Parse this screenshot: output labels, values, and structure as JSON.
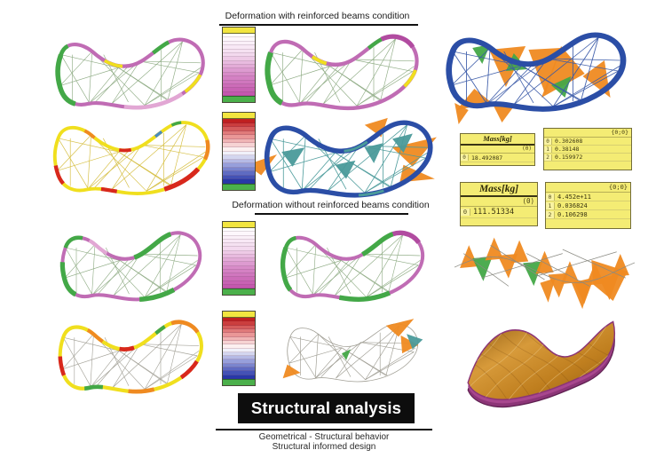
{
  "headers": {
    "with_beams": "Deformation with reinforced beams condition",
    "without_beams": "Deformation without reinforced beams condition"
  },
  "title_block": {
    "label": "Structural analysis",
    "bg": "#0d0d0d",
    "fg": "#ffffff"
  },
  "footer": {
    "line1": "Geometrical - Structural behavior",
    "line2": "Structural informed design"
  },
  "panels": {
    "mass_top": {
      "title": "Mass[kg]",
      "path": "(0)",
      "rows": [
        {
          "index": "0",
          "value": "18.492087"
        }
      ]
    },
    "list_top": {
      "path": "{0;0}",
      "rows": [
        {
          "index": "0",
          "value": "0.302608"
        },
        {
          "index": "1",
          "value": "0.38148"
        },
        {
          "index": "2",
          "value": "0.159972"
        }
      ]
    },
    "mass_bottom": {
      "title": "Mass[kg]",
      "path": "(0)",
      "rows": [
        {
          "index": "0",
          "value": "111.51334"
        }
      ]
    },
    "list_bottom": {
      "path": "{0;0}",
      "rows": [
        {
          "index": "0",
          "value": "4.452e+11"
        },
        {
          "index": "1",
          "value": "0.036824"
        },
        {
          "index": "2",
          "value": "0.106298"
        }
      ]
    }
  },
  "colors": {
    "magenta": "#c06cb4",
    "magenta_light": "#e2a7d4",
    "magenta_deep": "#b14ba0",
    "green": "#43a847",
    "yellow": "#f0df1e",
    "red": "#d8281c",
    "orange": "#ef8a21",
    "blue": "#2b4ea6",
    "teal": "#4a9a9a",
    "wire_green": "#8aa87f",
    "wire_yellow": "#d4bc3a",
    "wire_gray": "#a09e94",
    "wire_blue": "#3a5aa8",
    "surface_rim": "#8c3577",
    "surface_rim_dark": "#5e2050",
    "surface_copper_light": "#d79a3a",
    "surface_copper_dark": "#8f5c12",
    "panel_bg": "#f4ec74",
    "legend_header": "#f2e540",
    "legend_footer": "#4bb04b"
  },
  "legends": [
    {
      "id": "legend-1",
      "name": "displacement-scale-with-beams",
      "header": "#f2e540",
      "footer": "#4bb04b",
      "stops": [
        "#ffffff",
        "#f3d9ee",
        "#d88cc8",
        "#c457ae"
      ]
    },
    {
      "id": "legend-2",
      "name": "stress-scale-with-beams",
      "header": "#f2e540",
      "footer": "#4bb04b",
      "stops": [
        "#c02020",
        "#e89090",
        "#ffffff",
        "#9098d8",
        "#2838a8"
      ]
    },
    {
      "id": "legend-3",
      "name": "displacement-scale-without-beams",
      "header": "#f2e540",
      "footer": "#4bb04b",
      "stops": [
        "#ffffff",
        "#f3d9ee",
        "#d88cc8",
        "#c457ae"
      ]
    },
    {
      "id": "legend-4",
      "name": "stress-scale-without-beams",
      "header": "#f2e540",
      "footer": "#4bb04b",
      "stops": [
        "#c02020",
        "#e89090",
        "#ffffff",
        "#9098d8",
        "#2838a8"
      ]
    }
  ]
}
